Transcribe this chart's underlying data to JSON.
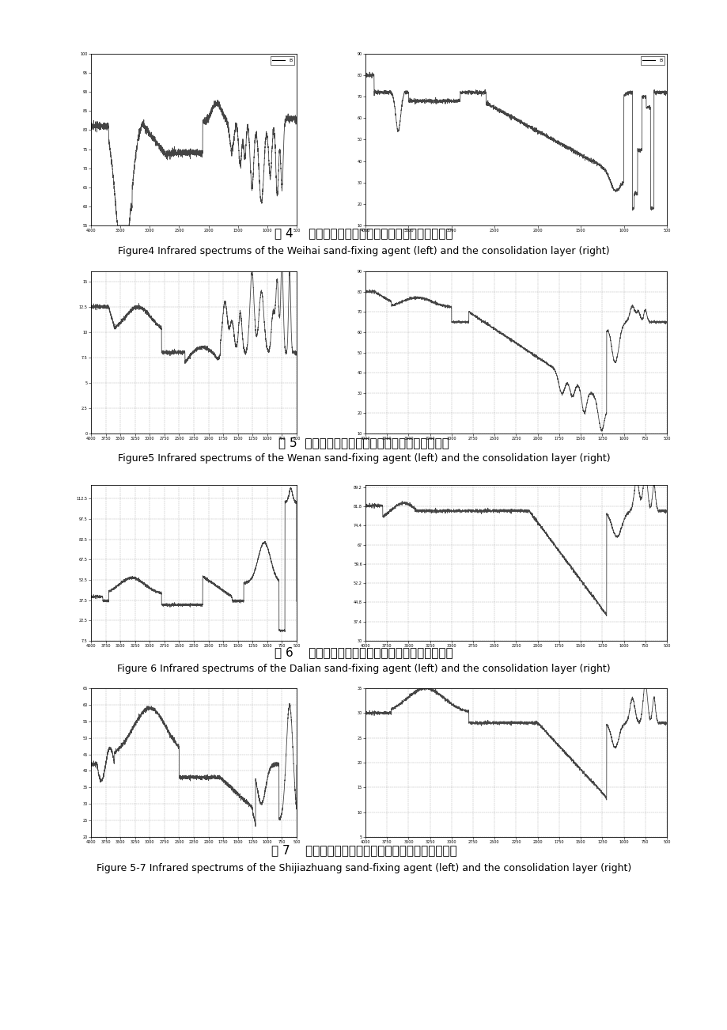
{
  "background_color": "#ffffff",
  "page_width": 9.2,
  "page_height": 13.02,
  "figures": [
    {
      "id": 4,
      "caption_zh": "图 4    威海固沙剂（左）和固结层（右）红外线图谱",
      "caption_en": "Figure4 Infrared spectrums of the Weihai sand-fixing agent (left) and the consolidation layer (right)",
      "left": {
        "xlim": [
          4000,
          500
        ],
        "ylim": [
          55,
          100
        ],
        "has_grid": false,
        "legend": "B",
        "curve_type": "weihai_left",
        "xticks": [
          4000,
          3500,
          3000,
          2500,
          2000,
          1500,
          1000,
          500
        ],
        "yticks": [
          55,
          60,
          65,
          70,
          75,
          80,
          85,
          90,
          95,
          100
        ]
      },
      "right": {
        "xlim": [
          4000,
          500
        ],
        "ylim": [
          10,
          90
        ],
        "has_grid": false,
        "legend": "B",
        "curve_type": "weihai_right",
        "xticks": [
          4000,
          3500,
          3000,
          2500,
          2000,
          1500,
          1000,
          500
        ],
        "yticks": [
          10,
          20,
          30,
          40,
          50,
          60,
          70,
          80,
          90
        ]
      }
    },
    {
      "id": 5,
      "caption_zh": "图 5  文安固沙剂（左）和固结层（右）红外线图谱",
      "caption_en": "Figure5 Infrared spectrums of the Wenan sand-fixing agent (left) and the consolidation layer (right)",
      "left": {
        "xlim": [
          4000,
          500
        ],
        "ylim": [
          0,
          16
        ],
        "has_grid": true,
        "legend": null,
        "curve_type": "wenan_left",
        "xticks": [
          4000,
          3750,
          3500,
          3250,
          3000,
          2750,
          2500,
          2250,
          2000,
          1750,
          1500,
          1250,
          1000,
          750,
          500
        ],
        "yticks": [
          0,
          2.5,
          5,
          7.5,
          10,
          12.5,
          15
        ]
      },
      "right": {
        "xlim": [
          4000,
          500
        ],
        "ylim": [
          10,
          90
        ],
        "has_grid": true,
        "legend": null,
        "curve_type": "wenan_right",
        "xticks": [
          4000,
          3750,
          3500,
          3250,
          3000,
          2750,
          2500,
          2250,
          2000,
          1750,
          1500,
          1250,
          1000,
          750,
          500
        ],
        "yticks": [
          10,
          20,
          30,
          40,
          50,
          60,
          70,
          80,
          90
        ]
      }
    },
    {
      "id": 6,
      "caption_zh": "图 6    大连固沙剂（左）和固结层（右）红外线图谱",
      "caption_en": "Figure 6 Infrared spectrums of the Dalian sand-fixing agent (left) and the consolidation layer (right)",
      "left": {
        "xlim": [
          4000,
          500
        ],
        "ylim": [
          7.5,
          122.5
        ],
        "has_grid": true,
        "legend": null,
        "curve_type": "dalian_left",
        "xticks": [
          4000,
          3750,
          3500,
          3250,
          3000,
          2750,
          2500,
          2250,
          2000,
          1750,
          1500,
          1250,
          1000,
          750,
          500
        ],
        "yticks": [
          7.5,
          22.5,
          37.5,
          52.5,
          67.5,
          82.5,
          97.5,
          112.5
        ]
      },
      "right": {
        "xlim": [
          4000,
          500
        ],
        "ylim": [
          30,
          90
        ],
        "has_grid": true,
        "legend": null,
        "curve_type": "dalian_right",
        "xticks": [
          4000,
          3750,
          3500,
          3250,
          3000,
          2750,
          2500,
          2250,
          2000,
          1750,
          1500,
          1250,
          1000,
          750,
          500
        ],
        "yticks": [
          30,
          37.4,
          44.8,
          52.2,
          59.6,
          67,
          74.4,
          81.8,
          89.2
        ]
      }
    },
    {
      "id": 7,
      "caption_zh": "图 7    石家庄固沙剂（左）和固结层（右）红外线图谱",
      "caption_en": "Figure 5-7 Infrared spectrums of the Shijiazhuang sand-fixing agent (left) and the consolidation layer (right)",
      "left": {
        "xlim": [
          4000,
          500
        ],
        "ylim": [
          20,
          65
        ],
        "has_grid": true,
        "legend": null,
        "curve_type": "sjz_left",
        "xticks": [
          4000,
          3750,
          3500,
          3250,
          3000,
          2750,
          2500,
          2250,
          2000,
          1750,
          1500,
          1250,
          1000,
          750,
          500
        ],
        "yticks": [
          20,
          25,
          30,
          35,
          40,
          45,
          50,
          55,
          60,
          65
        ]
      },
      "right": {
        "xlim": [
          4000,
          500
        ],
        "ylim": [
          5,
          35
        ],
        "has_grid": true,
        "legend": null,
        "curve_type": "sjz_right",
        "xticks": [
          4000,
          3750,
          3500,
          3250,
          3000,
          2750,
          2500,
          2250,
          2000,
          1750,
          1500,
          1250,
          1000,
          750,
          500
        ],
        "yticks": [
          5,
          10,
          15,
          20,
          25,
          30,
          35
        ]
      }
    }
  ],
  "font_size_caption_zh": 11,
  "font_size_caption_en": 9
}
